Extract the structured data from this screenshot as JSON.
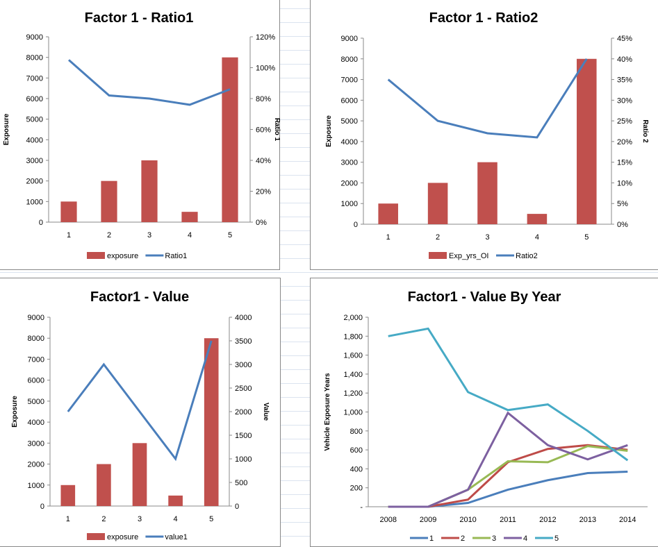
{
  "chart_data": [
    {
      "type": "bar+line",
      "title": "Factor 1 - Ratio1",
      "categories": [
        "1",
        "2",
        "3",
        "4",
        "5"
      ],
      "ylabel": "Exposure",
      "y2label": "Ratio 1",
      "ylim": [
        0,
        9000
      ],
      "y2lim": [
        0,
        1.2
      ],
      "y2format": "percent",
      "yticks": [
        "0",
        "1000",
        "2000",
        "3000",
        "4000",
        "5000",
        "6000",
        "7000",
        "8000",
        "9000"
      ],
      "y2ticks": [
        "0%",
        "20%",
        "40%",
        "60%",
        "80%",
        "100%",
        "120%"
      ],
      "series": [
        {
          "name": "exposure",
          "kind": "bar",
          "values": [
            1000,
            2000,
            3000,
            500,
            8000
          ]
        },
        {
          "name": "Ratio1",
          "kind": "line",
          "axis": "secondary",
          "values": [
            1.05,
            0.82,
            0.8,
            0.76,
            0.86
          ]
        }
      ]
    },
    {
      "type": "bar+line",
      "title": "Factor 1 - Ratio2",
      "categories": [
        "1",
        "2",
        "3",
        "4",
        "5"
      ],
      "ylabel": "Exposure",
      "y2label": "Ratio 2",
      "ylim": [
        0,
        9000
      ],
      "y2lim": [
        0,
        0.45
      ],
      "y2format": "percent",
      "yticks": [
        "0",
        "1000",
        "2000",
        "3000",
        "4000",
        "5000",
        "6000",
        "7000",
        "8000",
        "9000"
      ],
      "y2ticks": [
        "0%",
        "5%",
        "10%",
        "15%",
        "20%",
        "25%",
        "30%",
        "35%",
        "40%",
        "45%"
      ],
      "series": [
        {
          "name": "Exp_yrs_OI",
          "kind": "bar",
          "values": [
            1000,
            2000,
            3000,
            500,
            8000
          ]
        },
        {
          "name": "Ratio2",
          "kind": "line",
          "axis": "secondary",
          "values": [
            0.35,
            0.25,
            0.22,
            0.21,
            0.4
          ]
        }
      ]
    },
    {
      "type": "bar+line",
      "title": "Factor1 - Value",
      "categories": [
        "1",
        "2",
        "3",
        "4",
        "5"
      ],
      "ylabel": "Exposure",
      "y2label": "Value",
      "ylim": [
        0,
        9000
      ],
      "y2lim": [
        0,
        4000
      ],
      "yticks": [
        "0",
        "1000",
        "2000",
        "3000",
        "4000",
        "5000",
        "6000",
        "7000",
        "8000",
        "9000"
      ],
      "y2ticks": [
        "0",
        "500",
        "1000",
        "1500",
        "2000",
        "2500",
        "3000",
        "3500",
        "4000"
      ],
      "series": [
        {
          "name": "exposure",
          "kind": "bar",
          "values": [
            1000,
            2000,
            3000,
            500,
            8000
          ]
        },
        {
          "name": "value1",
          "kind": "line",
          "axis": "secondary",
          "values": [
            2000,
            3000,
            2000,
            1000,
            3500
          ]
        }
      ]
    },
    {
      "type": "line",
      "title": "Factor1 - Value By Year",
      "categories": [
        "2008",
        "2009",
        "2010",
        "2011",
        "2012",
        "2013",
        "2014"
      ],
      "ylabel": "Vehicle Exposure Years",
      "ylim": [
        0,
        2000
      ],
      "yticks": [
        "-",
        "200",
        "400",
        "600",
        "800",
        "1,000",
        "1,200",
        "1,400",
        "1,600",
        "1,800",
        "2,000"
      ],
      "legend": "bottom",
      "series": [
        {
          "name": "1",
          "color": "#4a7ebb",
          "values": [
            0,
            0,
            40,
            180,
            280,
            355,
            370
          ]
        },
        {
          "name": "2",
          "color": "#be4b48",
          "values": [
            0,
            0,
            75,
            470,
            610,
            650,
            600
          ]
        },
        {
          "name": "3",
          "color": "#98b954",
          "values": [
            0,
            0,
            180,
            480,
            470,
            640,
            590
          ]
        },
        {
          "name": "4",
          "color": "#7d60a0",
          "values": [
            0,
            0,
            180,
            990,
            650,
            500,
            650
          ]
        },
        {
          "name": "5",
          "color": "#46aac5",
          "values": [
            1800,
            1880,
            1210,
            1020,
            1080,
            800,
            490
          ]
        }
      ]
    }
  ],
  "colors": {
    "bar": "#c0504d",
    "line": "#4a7ebb"
  }
}
